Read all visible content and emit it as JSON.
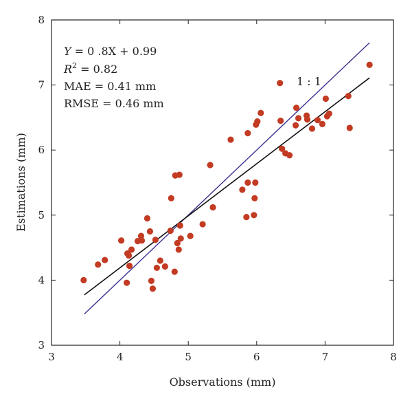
{
  "chart_data": {
    "type": "scatter",
    "xlabel": "Observations (mm)",
    "ylabel": "Estimations (mm)",
    "xlim": [
      3,
      8
    ],
    "ylim": [
      3,
      8
    ],
    "x_ticks": [
      "3",
      "4",
      "5",
      "6",
      "7",
      "8"
    ],
    "y_ticks": [
      "3",
      "4",
      "5",
      "6",
      "7",
      "8"
    ],
    "grid": false,
    "annotations": {
      "equation_prefix": "Y",
      "equation_rest": " = 0 .8X + 0.99",
      "r2_prefix": "R",
      "r2_sup": "2",
      "r2_rest": " = 0.82",
      "mae": "MAE = 0.41 mm",
      "rmse": "RMSE = 0.46 mm",
      "one_to_one": "1 : 1"
    },
    "points": [
      {
        "x": 3.47,
        "y": 4.0
      },
      {
        "x": 3.68,
        "y": 4.24
      },
      {
        "x": 3.78,
        "y": 4.31
      },
      {
        "x": 4.02,
        "y": 4.61
      },
      {
        "x": 4.1,
        "y": 3.96
      },
      {
        "x": 4.11,
        "y": 4.41
      },
      {
        "x": 4.13,
        "y": 4.38
      },
      {
        "x": 4.14,
        "y": 4.22
      },
      {
        "x": 4.17,
        "y": 4.47
      },
      {
        "x": 4.26,
        "y": 4.6
      },
      {
        "x": 4.31,
        "y": 4.68
      },
      {
        "x": 4.32,
        "y": 4.61
      },
      {
        "x": 4.4,
        "y": 4.95
      },
      {
        "x": 4.44,
        "y": 4.75
      },
      {
        "x": 4.46,
        "y": 3.99
      },
      {
        "x": 4.48,
        "y": 3.87
      },
      {
        "x": 4.52,
        "y": 4.62
      },
      {
        "x": 4.54,
        "y": 4.19
      },
      {
        "x": 4.59,
        "y": 4.3
      },
      {
        "x": 4.66,
        "y": 4.21
      },
      {
        "x": 4.74,
        "y": 4.76
      },
      {
        "x": 4.75,
        "y": 5.26
      },
      {
        "x": 4.8,
        "y": 4.13
      },
      {
        "x": 4.81,
        "y": 5.61
      },
      {
        "x": 4.84,
        "y": 4.57
      },
      {
        "x": 4.86,
        "y": 4.47
      },
      {
        "x": 4.87,
        "y": 5.62
      },
      {
        "x": 4.88,
        "y": 4.84
      },
      {
        "x": 4.89,
        "y": 4.64
      },
      {
        "x": 5.03,
        "y": 4.68
      },
      {
        "x": 5.21,
        "y": 4.86
      },
      {
        "x": 5.32,
        "y": 5.77
      },
      {
        "x": 5.36,
        "y": 5.12
      },
      {
        "x": 5.62,
        "y": 6.16
      },
      {
        "x": 5.79,
        "y": 5.39
      },
      {
        "x": 5.85,
        "y": 4.97
      },
      {
        "x": 5.87,
        "y": 5.5
      },
      {
        "x": 5.87,
        "y": 6.26
      },
      {
        "x": 5.96,
        "y": 5.0
      },
      {
        "x": 5.97,
        "y": 5.26
      },
      {
        "x": 5.98,
        "y": 5.5
      },
      {
        "x": 5.99,
        "y": 6.39
      },
      {
        "x": 6.01,
        "y": 6.44
      },
      {
        "x": 6.06,
        "y": 6.57
      },
      {
        "x": 6.34,
        "y": 7.03
      },
      {
        "x": 6.35,
        "y": 6.45
      },
      {
        "x": 6.37,
        "y": 6.02
      },
      {
        "x": 6.42,
        "y": 5.95
      },
      {
        "x": 6.48,
        "y": 5.92
      },
      {
        "x": 6.57,
        "y": 6.38
      },
      {
        "x": 6.58,
        "y": 6.65
      },
      {
        "x": 6.61,
        "y": 6.49
      },
      {
        "x": 6.73,
        "y": 6.53
      },
      {
        "x": 6.74,
        "y": 6.47
      },
      {
        "x": 6.81,
        "y": 6.33
      },
      {
        "x": 6.89,
        "y": 6.46
      },
      {
        "x": 6.96,
        "y": 6.4
      },
      {
        "x": 7.01,
        "y": 6.79
      },
      {
        "x": 7.03,
        "y": 6.52
      },
      {
        "x": 7.06,
        "y": 6.56
      },
      {
        "x": 7.34,
        "y": 6.83
      },
      {
        "x": 7.36,
        "y": 6.34
      },
      {
        "x": 7.65,
        "y": 7.31
      }
    ],
    "regression_line": {
      "slope": 0.8,
      "intercept": 0.99,
      "x_range": [
        3.48,
        7.65
      ],
      "color": "#111111"
    },
    "identity_line": {
      "slope": 1.0,
      "intercept": 0.0,
      "x_range": [
        3.48,
        7.65
      ],
      "color": "#3a3390"
    },
    "point_color": "#c23b22"
  }
}
